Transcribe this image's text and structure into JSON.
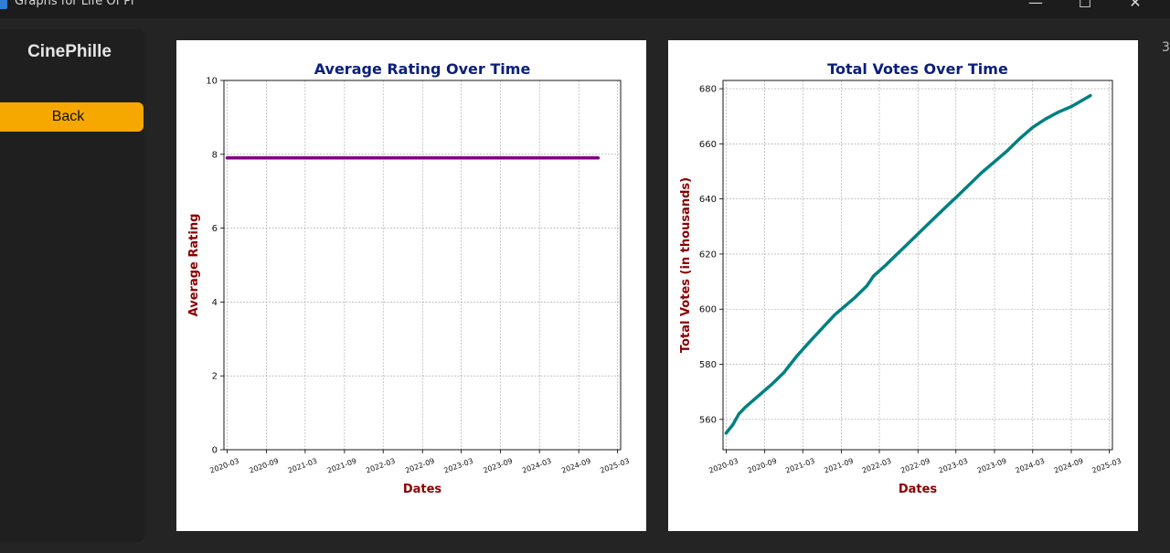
{
  "window": {
    "title": "Graphs for Life Of Pi",
    "minimize_icon": "minimize-icon",
    "maximize_icon": "maximize-icon",
    "close_icon": "close-icon",
    "minimize_glyph": "—",
    "maximize_glyph": "☐",
    "close_glyph": "✕"
  },
  "sidebar": {
    "brand": "CinePhille",
    "back_label": "Back",
    "accent_color": "#f6a800"
  },
  "edge_text": "3",
  "chart_data": [
    {
      "type": "line",
      "title": "Average Rating Over Time",
      "xlabel": "Dates",
      "ylabel": "Average Rating",
      "x_ticks": [
        "2020-03",
        "2020-09",
        "2021-03",
        "2021-09",
        "2022-03",
        "2022-09",
        "2023-03",
        "2023-09",
        "2024-03",
        "2024-09",
        "2025-03"
      ],
      "y_ticks": [
        "0",
        "2",
        "4",
        "6",
        "8",
        "10"
      ],
      "xlim": [
        "2020-03",
        "2025-03"
      ],
      "ylim": [
        0,
        10
      ],
      "grid": true,
      "line_color": "#800080",
      "series": [
        {
          "x": [
            "2020-03-01",
            "2024-12-01"
          ],
          "y": [
            7.9,
            7.9
          ]
        }
      ]
    },
    {
      "type": "line",
      "title": "Total Votes Over Time",
      "xlabel": "Dates",
      "ylabel": "Total Votes (in thousands)",
      "x_ticks": [
        "2020-03",
        "2020-09",
        "2021-03",
        "2021-09",
        "2022-03",
        "2022-09",
        "2023-03",
        "2023-09",
        "2024-03",
        "2024-09",
        "2025-03"
      ],
      "y_ticks": [
        "560",
        "580",
        "600",
        "620",
        "640",
        "660",
        "680"
      ],
      "xlim": [
        "2020-03",
        "2025-03"
      ],
      "ylim": [
        549,
        683
      ],
      "grid": true,
      "line_color": "#008080",
      "series": [
        {
          "x": [
            "2020-03-01",
            "2020-04-01",
            "2020-05-01",
            "2020-06-01",
            "2020-08-01",
            "2020-10-01",
            "2020-12-01",
            "2021-02-01",
            "2021-04-01",
            "2021-06-01",
            "2021-08-01",
            "2021-09-01",
            "2021-11-01",
            "2022-01-01",
            "2022-02-01",
            "2022-04-01",
            "2022-06-01",
            "2022-08-01",
            "2022-10-01",
            "2022-12-01",
            "2023-02-01",
            "2023-03-01",
            "2023-05-01",
            "2023-07-01",
            "2023-09-01",
            "2023-11-01",
            "2024-01-01",
            "2024-03-01",
            "2024-05-01",
            "2024-07-01",
            "2024-09-01",
            "2024-12-01"
          ],
          "y": [
            555,
            558,
            562,
            564.5,
            568.5,
            572.5,
            577,
            583,
            588,
            593,
            598,
            600,
            604,
            608.5,
            612,
            616,
            620.5,
            625,
            629.5,
            634,
            638.5,
            640.5,
            645,
            649.5,
            653.5,
            657.5,
            662,
            666,
            669,
            671.5,
            673.5,
            677.5
          ]
        }
      ]
    }
  ]
}
